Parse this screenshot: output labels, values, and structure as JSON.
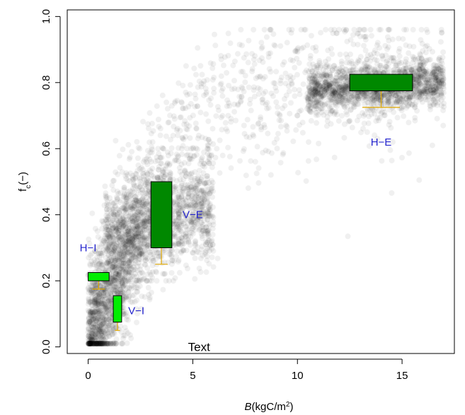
{
  "chart_data": {
    "type": "scatter",
    "xlim": [
      -1,
      17.5
    ],
    "ylim": [
      -0.02,
      1.02
    ],
    "xticks": [
      0,
      5,
      10,
      15
    ],
    "yticks": [
      0.0,
      0.2,
      0.4,
      0.6,
      0.8,
      1.0
    ],
    "xtick_labels": [
      "0",
      "5",
      "10",
      "15"
    ],
    "ytick_labels": [
      "0.0",
      "0.2",
      "0.4",
      "0.6",
      "0.8",
      "1.0"
    ],
    "xlabel_italic": "B",
    "xlabel_rest": "(kgC/m",
    "xlabel_sup": "2",
    "xlabel_close": ")",
    "ylabel_main": "f",
    "ylabel_sub": "c",
    "ylabel_rest": "(−)",
    "annotation": {
      "text": "Text",
      "x": 5.3,
      "y": 0.0
    },
    "grid": false,
    "point_color": "#000000",
    "boxes": [
      {
        "label": "H−I",
        "label_x": 0.0,
        "label_y": 0.3,
        "x0": 0.0,
        "x1": 1.0,
        "q1": 0.2,
        "q3": 0.225,
        "whisker_x": 0.5,
        "whisker_low": 0.175,
        "fill": "#00ee00"
      },
      {
        "label": "V−I",
        "label_x": 2.3,
        "label_y": 0.11,
        "x0": 1.2,
        "x1": 1.6,
        "q1": 0.075,
        "q3": 0.155,
        "whisker_x": 1.4,
        "whisker_low": 0.05,
        "fill": "#00ee00"
      },
      {
        "label": "V−E",
        "label_x": 5.0,
        "label_y": 0.4,
        "x0": 3.0,
        "x1": 4.0,
        "q1": 0.3,
        "q3": 0.5,
        "whisker_x": 3.5,
        "whisker_low": 0.25,
        "fill": "#008800"
      },
      {
        "label": "H−E",
        "label_x": 14.0,
        "label_y": 0.62,
        "x0": 12.5,
        "x1": 15.5,
        "q1": 0.775,
        "q3": 0.825,
        "whisker_x": 14.0,
        "whisker_low": 0.725,
        "fill": "#008800"
      }
    ],
    "label_color": "#2222cc",
    "whisker_color": "#e0a800"
  }
}
